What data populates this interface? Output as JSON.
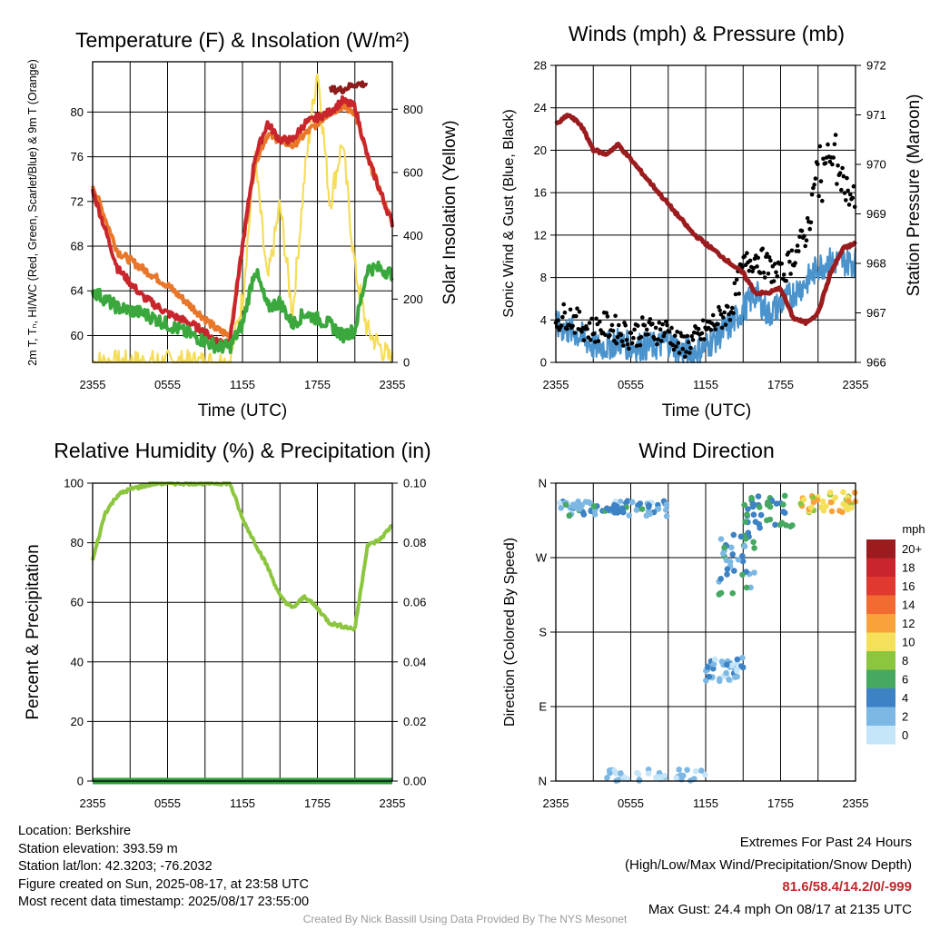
{
  "chart_data": [
    {
      "type": "line",
      "title": "Temperature (F) & Insolation (W/m²)",
      "xlabel": "Time (UTC)",
      "ylabel": "2m T, Tₙ, HI/WC (Red, Green, Scarlet/Blue) & 9m T (Orange)",
      "y2label": "Solar Insolation (Yellow)",
      "x_ticks": [
        "2355",
        "0555",
        "1155",
        "1755",
        "2355"
      ],
      "y_ticks": [
        60,
        64,
        68,
        72,
        76,
        80
      ],
      "y2_ticks": [
        0,
        200,
        400,
        600,
        800
      ],
      "ylim": [
        57.6,
        84.5
      ],
      "y2lim": [
        0,
        950
      ],
      "x_hours": [
        0,
        2,
        4,
        6,
        8,
        10,
        11,
        12,
        13,
        14,
        15,
        16,
        17,
        18,
        19,
        20,
        21,
        22,
        23,
        24
      ],
      "series": [
        {
          "color": "#c8262c",
          "axis": "left",
          "values": [
            73,
            66,
            63.5,
            62,
            61,
            59.5,
            59.5,
            68,
            76,
            79,
            77.5,
            77.5,
            79,
            79.5,
            80,
            81,
            80.5,
            76,
            73,
            70
          ]
        },
        {
          "color": "#e8772a",
          "axis": "left",
          "values": [
            73.5,
            67.5,
            66,
            64.5,
            62.5,
            60.5,
            60,
            68,
            75.5,
            78,
            77.5,
            77,
            78,
            79,
            80,
            80.5,
            80,
            76,
            73,
            70
          ]
        },
        {
          "color": "#3aa83c",
          "axis": "left",
          "values": [
            64,
            62.5,
            62,
            61,
            60,
            59,
            59,
            61,
            66,
            62.5,
            63,
            61,
            62,
            61.5,
            61,
            60,
            60.5,
            66,
            66,
            65.5
          ]
        },
        {
          "color": "#8e1b1c",
          "axis": "left",
          "values": [
            null,
            null,
            null,
            null,
            null,
            null,
            null,
            null,
            null,
            null,
            null,
            null,
            null,
            null,
            null,
            82,
            82.5,
            null,
            null,
            null
          ]
        },
        {
          "color": "#f5dd5a",
          "axis": "right",
          "values": [
            0,
            0,
            0,
            0,
            0,
            0,
            5,
            200,
            650,
            250,
            500,
            150,
            600,
            930,
            500,
            700,
            300,
            100,
            50,
            0
          ]
        }
      ]
    },
    {
      "type": "line",
      "title": "Winds (mph) & Pressure (mb)",
      "xlabel": "Time (UTC)",
      "ylabel": "Sonic Wind & Gust (Blue, Black)",
      "y2label": "Station Pressure (Maroon)",
      "x_ticks": [
        "2355",
        "0555",
        "1155",
        "1755",
        "2355"
      ],
      "y_ticks": [
        0,
        4,
        8,
        12,
        16,
        20,
        24,
        28
      ],
      "y2_ticks": [
        966,
        967,
        968,
        969,
        970,
        971,
        972
      ],
      "ylim": [
        0,
        28
      ],
      "y2lim": [
        966,
        972
      ],
      "x_hours": [
        0,
        1,
        2,
        3,
        4,
        5,
        6,
        7,
        8,
        9,
        10,
        11,
        12,
        13,
        14,
        15,
        16,
        17,
        18,
        19,
        20,
        21,
        22,
        23,
        24
      ],
      "series": [
        {
          "color": "#4a93cc",
          "axis": "left",
          "values": [
            3.5,
            3,
            2.5,
            1.5,
            1.5,
            2,
            1.5,
            1.5,
            1.5,
            2,
            1,
            1,
            1.5,
            2.5,
            3.5,
            5,
            6.5,
            4.5,
            5.5,
            6.5,
            7.5,
            9,
            9.5,
            9.5,
            9.5
          ]
        },
        {
          "color": "#000000",
          "axis": "left",
          "values": [
            4,
            4.5,
            3.5,
            3,
            3.5,
            3,
            2.5,
            3,
            3,
            3,
            1.5,
            2,
            3,
            4,
            5,
            9,
            10,
            9,
            8,
            10,
            12,
            17,
            19,
            17,
            15
          ]
        },
        {
          "color": "#9b1c1e",
          "axis": "right",
          "values": [
            970.8,
            971.0,
            970.8,
            970.3,
            970.2,
            970.4,
            970.1,
            969.8,
            969.5,
            969.2,
            968.9,
            968.6,
            968.4,
            968.2,
            968.0,
            967.8,
            967.4,
            967.4,
            967.5,
            966.9,
            966.8,
            967.0,
            967.8,
            968.3,
            968.4
          ]
        }
      ]
    },
    {
      "type": "line",
      "title": "Relative Humidity (%) & Precipitation (in)",
      "ylabel": "Percent & Precipitation",
      "x_ticks": [
        "2355",
        "0555",
        "1155",
        "1755",
        "2355"
      ],
      "y_ticks": [
        0,
        20,
        40,
        60,
        80,
        100
      ],
      "y2_ticks": [
        "0.00",
        "0.02",
        "0.04",
        "0.06",
        "0.08",
        "0.10"
      ],
      "ylim": [
        0,
        100
      ],
      "y2lim": [
        0,
        0.1
      ],
      "x_hours": [
        0,
        1,
        2,
        3,
        4,
        5,
        6,
        7,
        8,
        9,
        10,
        11,
        12,
        13,
        14,
        15,
        16,
        17,
        18,
        19,
        20,
        21,
        22,
        23,
        24
      ],
      "series": [
        {
          "color": "#8cc63f",
          "axis": "left",
          "values": [
            74,
            90,
            96,
            98,
            99,
            100,
            100,
            100,
            100,
            100,
            100,
            100,
            88,
            80,
            72,
            62,
            58,
            62,
            58,
            53,
            52,
            51,
            79,
            81,
            86
          ]
        },
        {
          "color": "#2e9a3c",
          "axis": "right",
          "values": [
            0,
            0,
            0,
            0,
            0,
            0,
            0,
            0,
            0,
            0,
            0,
            0,
            0,
            0,
            0,
            0,
            0,
            0,
            0,
            0,
            0,
            0,
            0,
            0,
            0
          ]
        }
      ]
    },
    {
      "type": "scatter",
      "title": "Wind Direction",
      "ylabel": "Direction (Colored By Speed)",
      "x_ticks": [
        "2355",
        "0555",
        "1155",
        "1755",
        "2355"
      ],
      "y_ticks": [
        "N",
        "E",
        "S",
        "W",
        "N"
      ],
      "ylim": [
        0,
        360
      ],
      "legend": {
        "title": "mph",
        "labels": [
          "20+",
          "18",
          "16",
          "14",
          "12",
          "10",
          "8",
          "6",
          "4",
          "2",
          "0"
        ],
        "colors": [
          "#9b1b1f",
          "#c8262c",
          "#e0392f",
          "#f26b30",
          "#f9a23c",
          "#f4e05a",
          "#8cc63f",
          "#47a862",
          "#3d82c4",
          "#7db8e4",
          "#c5e5f8"
        ]
      },
      "clusters": [
        {
          "hours": [
            0,
            9
          ],
          "dir": [
            325,
            340
          ],
          "speed": 2
        },
        {
          "hours": [
            0.5,
            9
          ],
          "dir": [
            320,
            335
          ],
          "speed": 4
        },
        {
          "hours": [
            13,
            16
          ],
          "dir": [
            225,
            300
          ],
          "speed": 4
        },
        {
          "hours": [
            15,
            19
          ],
          "dir": [
            305,
            345
          ],
          "speed": 5
        },
        {
          "hours": [
            19.5,
            24
          ],
          "dir": [
            325,
            350
          ],
          "speed": 10
        },
        {
          "hours": [
            12,
            15
          ],
          "dir": [
            120,
            150
          ],
          "speed": 2
        },
        {
          "hours": [
            4,
            12
          ],
          "dir": [
            0,
            15
          ],
          "speed": 0.5
        }
      ]
    }
  ],
  "footer": {
    "location": "Location: Berkshire",
    "elevation": "Station elevation: 393.59 m",
    "latlon": "Station lat/lon: 42.3203; -76.2032",
    "created": "Figure created on Sun, 2025-08-17, at 23:58 UTC",
    "recent": "Most recent data timestamp: 2025/08/17 23:55:00",
    "extremes_title": "Extremes For Past 24 Hours",
    "extremes_subtitle": "(High/Low/Max Wind/Precipitation/Snow Depth)",
    "extremes_values": "81.6/58.4/14.2/0/-999",
    "max_gust": "Max Gust: 24.4 mph On 08/17 at 2135 UTC",
    "credit": "Created By Nick Bassill Using Data Provided By The NYS Mesonet"
  }
}
